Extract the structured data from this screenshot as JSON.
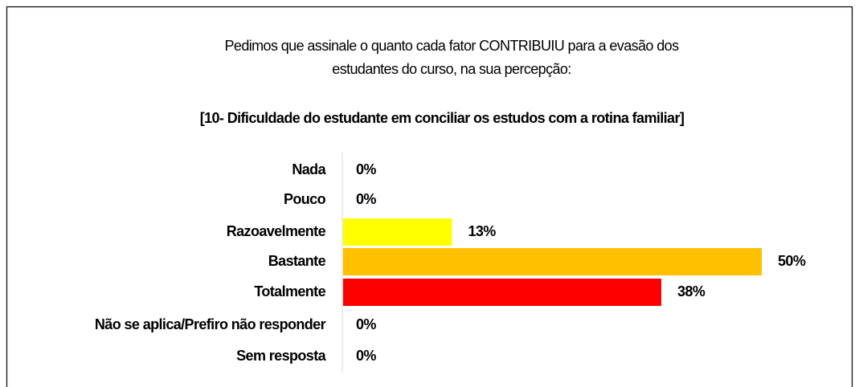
{
  "chart_data": {
    "type": "bar",
    "orientation": "horizontal",
    "title": [
      "Pedimos que assinale o quanto cada fator CONTRIBUIU para a evasão dos",
      "estudantes do curso, na sua percepção:"
    ],
    "subtitle": "[10- Dificuldade do estudante em conciliar os estudos com a rotina familiar]",
    "categories": [
      "Nada",
      "Pouco",
      "Razoavelmente",
      "Bastante",
      "Totalmente",
      "Não se aplica/Prefiro não responder",
      "Sem resposta"
    ],
    "values": [
      0,
      0,
      13,
      50,
      38,
      0,
      0
    ],
    "value_labels": [
      "0%",
      "0%",
      "13%",
      "50%",
      "38%",
      "0%",
      "0%"
    ],
    "colors": [
      null,
      null,
      "#ffff00",
      "#ffc000",
      "#ff0000",
      null,
      null
    ]
  }
}
